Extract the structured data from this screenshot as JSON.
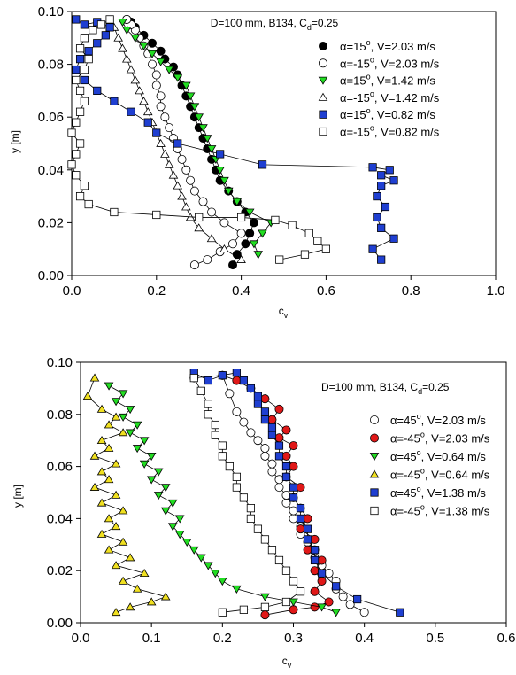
{
  "chart_data": [
    {
      "type": "scatter",
      "title": "",
      "annotation": {
        "main": "D=100 mm, B134, C",
        "sub": "d",
        "tail": "=0.25"
      },
      "xlabel": {
        "main": "c",
        "sub": "v"
      },
      "ylabel": "y [m]",
      "xlim": [
        0,
        1.0
      ],
      "ylim": [
        0,
        0.1
      ],
      "xticks": [
        "0.0",
        "0.2",
        "0.4",
        "0.6",
        "0.8",
        "1.0"
      ],
      "yticks": [
        "0.00",
        "0.02",
        "0.04",
        "0.06",
        "0.08",
        "0.10"
      ],
      "legend_position": "top-right",
      "series": [
        {
          "label": {
            "pre": "α=15",
            "sup": "o",
            "post": ", V=2.03 m/s"
          },
          "marker": "circle",
          "fill": "#000000",
          "x": [
            0.38,
            0.39,
            0.41,
            0.42,
            0.43,
            0.41,
            0.39,
            0.37,
            0.35,
            0.34,
            0.33,
            0.32,
            0.31,
            0.3,
            0.29,
            0.28,
            0.27,
            0.26,
            0.25,
            0.24,
            0.22,
            0.21,
            0.19,
            0.17,
            0.15,
            0.14,
            0.13
          ],
          "y": [
            0.004,
            0.008,
            0.012,
            0.016,
            0.02,
            0.024,
            0.028,
            0.032,
            0.036,
            0.04,
            0.044,
            0.048,
            0.052,
            0.056,
            0.06,
            0.064,
            0.068,
            0.072,
            0.076,
            0.079,
            0.082,
            0.085,
            0.088,
            0.091,
            0.094,
            0.096,
            0.097
          ]
        },
        {
          "label": {
            "pre": "α=-15",
            "sup": "o",
            "post": ", V=2.03 m/s"
          },
          "marker": "circle",
          "fill": "#ffffff",
          "x": [
            0.29,
            0.32,
            0.35,
            0.38,
            0.4,
            0.36,
            0.33,
            0.31,
            0.29,
            0.28,
            0.27,
            0.26,
            0.25,
            0.24,
            0.23,
            0.22,
            0.21,
            0.21,
            0.2,
            0.2,
            0.19,
            0.18,
            0.17,
            0.16,
            0.15,
            0.14,
            0.13
          ],
          "y": [
            0.004,
            0.006,
            0.009,
            0.012,
            0.016,
            0.02,
            0.024,
            0.028,
            0.032,
            0.036,
            0.04,
            0.044,
            0.048,
            0.052,
            0.056,
            0.06,
            0.064,
            0.068,
            0.072,
            0.076,
            0.08,
            0.084,
            0.087,
            0.09,
            0.093,
            0.095,
            0.097
          ]
        },
        {
          "label": {
            "pre": "α=15",
            "sup": "o",
            "post": ", V=1.42 m/s"
          },
          "marker": "triangle-down",
          "fill": "#22dd22",
          "x": [
            0.44,
            0.43,
            0.45,
            0.47,
            0.42,
            0.39,
            0.37,
            0.36,
            0.35,
            0.34,
            0.33,
            0.32,
            0.31,
            0.3,
            0.29,
            0.28,
            0.27,
            0.25,
            0.23,
            0.21,
            0.19,
            0.17,
            0.15,
            0.13,
            0.12
          ],
          "y": [
            0.008,
            0.012,
            0.016,
            0.02,
            0.024,
            0.028,
            0.032,
            0.036,
            0.04,
            0.044,
            0.048,
            0.052,
            0.056,
            0.06,
            0.064,
            0.068,
            0.072,
            0.075,
            0.078,
            0.081,
            0.084,
            0.087,
            0.09,
            0.093,
            0.096
          ]
        },
        {
          "label": {
            "pre": "α=-15",
            "sup": "o",
            "post": ", V=1.42 m/s"
          },
          "marker": "triangle-up",
          "fill": "#ffffff",
          "x": [
            0.4,
            0.36,
            0.33,
            0.3,
            0.28,
            0.27,
            0.26,
            0.25,
            0.24,
            0.23,
            0.22,
            0.21,
            0.2,
            0.19,
            0.18,
            0.17,
            0.16,
            0.15,
            0.14,
            0.13,
            0.12,
            0.11,
            0.1
          ],
          "y": [
            0.006,
            0.01,
            0.014,
            0.018,
            0.022,
            0.026,
            0.03,
            0.034,
            0.038,
            0.042,
            0.046,
            0.05,
            0.054,
            0.058,
            0.062,
            0.066,
            0.07,
            0.074,
            0.078,
            0.082,
            0.086,
            0.09,
            0.094
          ]
        },
        {
          "label": {
            "pre": "α=15",
            "sup": "o",
            "post": ", V=0.82 m/s"
          },
          "marker": "square",
          "fill": "#1f3fd1",
          "x": [
            0.73,
            0.71,
            0.76,
            0.73,
            0.72,
            0.74,
            0.72,
            0.73,
            0.76,
            0.73,
            0.75,
            0.71,
            0.45,
            0.35,
            0.25,
            0.2,
            0.18,
            0.14,
            0.1,
            0.06,
            0.03,
            0.01,
            0.02,
            0.04,
            0.06,
            0.08,
            0.09,
            0.06,
            0.03,
            0.01
          ],
          "y": [
            0.006,
            0.01,
            0.014,
            0.018,
            0.022,
            0.026,
            0.03,
            0.034,
            0.036,
            0.038,
            0.04,
            0.041,
            0.042,
            0.046,
            0.05,
            0.054,
            0.058,
            0.062,
            0.066,
            0.07,
            0.074,
            0.078,
            0.082,
            0.085,
            0.088,
            0.091,
            0.094,
            0.096,
            0.095,
            0.097
          ]
        },
        {
          "label": {
            "pre": "α=-15",
            "sup": "o",
            "post": ", V=0.82 m/s"
          },
          "marker": "square",
          "fill": "#ffffff",
          "x": [
            0.49,
            0.55,
            0.6,
            0.58,
            0.56,
            0.52,
            0.48,
            0.4,
            0.3,
            0.2,
            0.1,
            0.04,
            0.02,
            0.03,
            0.01,
            0.0,
            0.01,
            0.02,
            0.0,
            0.01,
            0.02,
            0.03,
            0.02,
            0.01,
            0.03,
            0.04,
            0.02,
            0.03,
            0.05,
            0.07,
            0.09
          ],
          "y": [
            0.006,
            0.008,
            0.01,
            0.013,
            0.016,
            0.019,
            0.021,
            0.022,
            0.022,
            0.023,
            0.024,
            0.027,
            0.03,
            0.034,
            0.038,
            0.042,
            0.046,
            0.05,
            0.054,
            0.058,
            0.062,
            0.066,
            0.07,
            0.074,
            0.078,
            0.082,
            0.086,
            0.09,
            0.093,
            0.095,
            0.097
          ]
        }
      ]
    },
    {
      "type": "scatter",
      "title": "",
      "annotation": {
        "main": "D=100 mm, B134, C",
        "sub": "d",
        "tail": "=0.25"
      },
      "xlabel": {
        "main": "c",
        "sub": "v"
      },
      "ylabel": "y [m]",
      "xlim": [
        0,
        0.6
      ],
      "ylim": [
        0,
        0.1
      ],
      "xticks": [
        "0.0",
        "0.1",
        "0.2",
        "0.3",
        "0.4",
        "0.5",
        "0.6"
      ],
      "yticks": [
        "0.00",
        "0.02",
        "0.04",
        "0.06",
        "0.08",
        "0.10"
      ],
      "legend_position": "right",
      "series": [
        {
          "label": {
            "pre": "α=45",
            "sup": "o",
            "post": ", V=2.03 m/s"
          },
          "marker": "circle",
          "fill": "#ffffff",
          "x": [
            0.4,
            0.38,
            0.37,
            0.36,
            0.36,
            0.35,
            0.34,
            0.33,
            0.33,
            0.32,
            0.31,
            0.31,
            0.3,
            0.3,
            0.29,
            0.29,
            0.28,
            0.28,
            0.27,
            0.27,
            0.26,
            0.26,
            0.25,
            0.24,
            0.23,
            0.22,
            0.21,
            0.2
          ],
          "y": [
            0.004,
            0.007,
            0.01,
            0.013,
            0.016,
            0.019,
            0.022,
            0.025,
            0.028,
            0.031,
            0.034,
            0.037,
            0.04,
            0.043,
            0.046,
            0.049,
            0.052,
            0.055,
            0.058,
            0.061,
            0.064,
            0.067,
            0.07,
            0.073,
            0.077,
            0.081,
            0.088,
            0.095
          ]
        },
        {
          "label": {
            "pre": "α=-45",
            "sup": "o",
            "post": ", V=2.03 m/s"
          },
          "marker": "circle",
          "fill": "#e01818",
          "x": [
            0.26,
            0.3,
            0.33,
            0.35,
            0.33,
            0.34,
            0.33,
            0.34,
            0.32,
            0.33,
            0.31,
            0.32,
            0.31,
            0.3,
            0.31,
            0.29,
            0.3,
            0.29,
            0.3,
            0.28,
            0.29,
            0.27,
            0.28,
            0.26,
            0.24,
            0.22,
            0.2,
            0.16
          ],
          "y": [
            0.003,
            0.005,
            0.006,
            0.008,
            0.012,
            0.016,
            0.02,
            0.024,
            0.028,
            0.032,
            0.036,
            0.04,
            0.044,
            0.048,
            0.052,
            0.056,
            0.06,
            0.064,
            0.068,
            0.071,
            0.074,
            0.078,
            0.082,
            0.086,
            0.09,
            0.093,
            0.095,
            0.094
          ]
        },
        {
          "label": {
            "pre": "α=45",
            "sup": "o",
            "post": ", V=0.64 m/s"
          },
          "marker": "triangle-down",
          "fill": "#22dd22",
          "x": [
            0.36,
            0.34,
            0.3,
            0.26,
            0.22,
            0.2,
            0.19,
            0.18,
            0.17,
            0.16,
            0.15,
            0.14,
            0.13,
            0.14,
            0.12,
            0.13,
            0.11,
            0.12,
            0.1,
            0.11,
            0.09,
            0.1,
            0.08,
            0.09,
            0.07,
            0.08,
            0.06,
            0.07,
            0.05,
            0.06,
            0.04
          ],
          "y": [
            0.004,
            0.006,
            0.008,
            0.01,
            0.013,
            0.016,
            0.019,
            0.022,
            0.025,
            0.028,
            0.031,
            0.034,
            0.037,
            0.04,
            0.043,
            0.046,
            0.049,
            0.052,
            0.055,
            0.058,
            0.061,
            0.064,
            0.067,
            0.07,
            0.073,
            0.076,
            0.079,
            0.082,
            0.085,
            0.088,
            0.091
          ]
        },
        {
          "label": {
            "pre": "α=-45",
            "sup": "o",
            "post": ", V=0.64 m/s"
          },
          "marker": "triangle-up",
          "fill": "#f0e020",
          "x": [
            0.05,
            0.07,
            0.1,
            0.12,
            0.08,
            0.06,
            0.09,
            0.05,
            0.07,
            0.04,
            0.06,
            0.03,
            0.05,
            0.04,
            0.06,
            0.03,
            0.05,
            0.02,
            0.04,
            0.03,
            0.05,
            0.02,
            0.04,
            0.03,
            0.06,
            0.04,
            0.05,
            0.03,
            0.01,
            0.02
          ],
          "y": [
            0.004,
            0.006,
            0.008,
            0.01,
            0.013,
            0.016,
            0.019,
            0.022,
            0.025,
            0.028,
            0.031,
            0.034,
            0.037,
            0.04,
            0.043,
            0.046,
            0.049,
            0.052,
            0.055,
            0.058,
            0.061,
            0.064,
            0.067,
            0.07,
            0.073,
            0.076,
            0.079,
            0.082,
            0.087,
            0.094
          ]
        },
        {
          "label": {
            "pre": "α=45",
            "sup": "o",
            "post": ", V=1.38 m/s"
          },
          "marker": "square",
          "fill": "#1f3fd1",
          "x": [
            0.45,
            0.39,
            0.36,
            0.34,
            0.33,
            0.33,
            0.32,
            0.32,
            0.31,
            0.31,
            0.3,
            0.3,
            0.29,
            0.29,
            0.28,
            0.28,
            0.27,
            0.27,
            0.26,
            0.26,
            0.25,
            0.25,
            0.24,
            0.23,
            0.22,
            0.2,
            0.18,
            0.16
          ],
          "y": [
            0.004,
            0.009,
            0.014,
            0.019,
            0.024,
            0.028,
            0.032,
            0.036,
            0.04,
            0.044,
            0.048,
            0.052,
            0.056,
            0.06,
            0.064,
            0.068,
            0.072,
            0.075,
            0.078,
            0.081,
            0.084,
            0.087,
            0.09,
            0.093,
            0.096,
            0.095,
            0.093,
            0.096
          ]
        },
        {
          "label": {
            "pre": "α=-45",
            "sup": "o",
            "post": ", V=1.38 m/s"
          },
          "marker": "square",
          "fill": "#ffffff",
          "x": [
            0.2,
            0.23,
            0.26,
            0.29,
            0.31,
            0.3,
            0.29,
            0.28,
            0.27,
            0.26,
            0.25,
            0.24,
            0.24,
            0.23,
            0.22,
            0.22,
            0.21,
            0.2,
            0.2,
            0.19,
            0.19,
            0.18,
            0.18,
            0.17,
            0.16
          ],
          "y": [
            0.004,
            0.005,
            0.006,
            0.008,
            0.012,
            0.016,
            0.02,
            0.024,
            0.028,
            0.032,
            0.036,
            0.04,
            0.044,
            0.048,
            0.052,
            0.056,
            0.06,
            0.064,
            0.068,
            0.072,
            0.076,
            0.08,
            0.084,
            0.089,
            0.094
          ]
        }
      ]
    }
  ]
}
